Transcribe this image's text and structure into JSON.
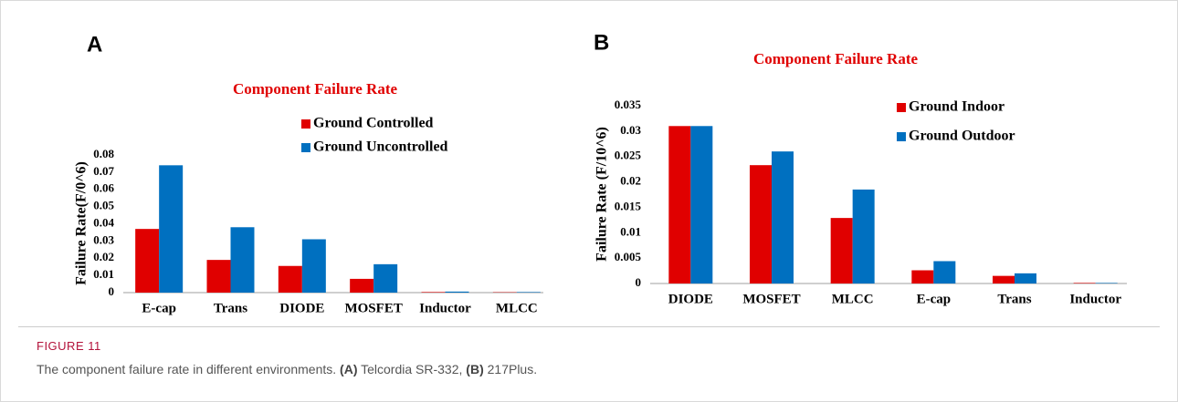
{
  "chart_data": [
    {
      "type": "bar",
      "panel": "A",
      "title": "Component Failure Rate",
      "y_label": "Failure Rate(F/0^6)",
      "categories": [
        "E-cap",
        "Trans",
        "DIODE",
        "MOSFET",
        "Inductor",
        "MLCC"
      ],
      "series": [
        {
          "name": "Ground Controlled",
          "color": "#e00000",
          "values": [
            0.037,
            0.019,
            0.0155,
            0.008,
            0.0003,
            0.0002
          ]
        },
        {
          "name": "Ground Uncontrolled",
          "color": "#0070c0",
          "values": [
            0.074,
            0.038,
            0.031,
            0.0165,
            0.0006,
            0.0003
          ]
        }
      ],
      "ylim": [
        0,
        0.08
      ],
      "yticks": [
        0,
        0.01,
        0.02,
        0.03,
        0.04,
        0.05,
        0.06,
        0.07,
        0.08
      ],
      "grid": false,
      "legend": "upper right"
    },
    {
      "type": "bar",
      "panel": "B",
      "title": "Component Failure Rate",
      "y_label": "Failure Rate (F/10^6)",
      "categories": [
        "DIODE",
        "MOSFET",
        "MLCC",
        "E-cap",
        "Trans",
        "Inductor"
      ],
      "series": [
        {
          "name": "Ground Indoor",
          "color": "#e00000",
          "values": [
            0.031,
            0.0233,
            0.0129,
            0.0026,
            0.0015,
            0.0001
          ]
        },
        {
          "name": "Ground Outdoor",
          "color": "#0070c0",
          "values": [
            0.031,
            0.026,
            0.0185,
            0.0044,
            0.002,
            0.0001
          ]
        }
      ],
      "ylim": [
        0,
        0.035
      ],
      "yticks": [
        0,
        0.005,
        0.01,
        0.015,
        0.02,
        0.025,
        0.03,
        0.035
      ],
      "grid": false,
      "legend": "upper right"
    }
  ],
  "caption": {
    "label": "FIGURE 11",
    "parts": [
      "The component failure rate in different environments. ",
      "(A)",
      " Telcordia SR-332, ",
      "(B)",
      " 217Plus."
    ]
  }
}
